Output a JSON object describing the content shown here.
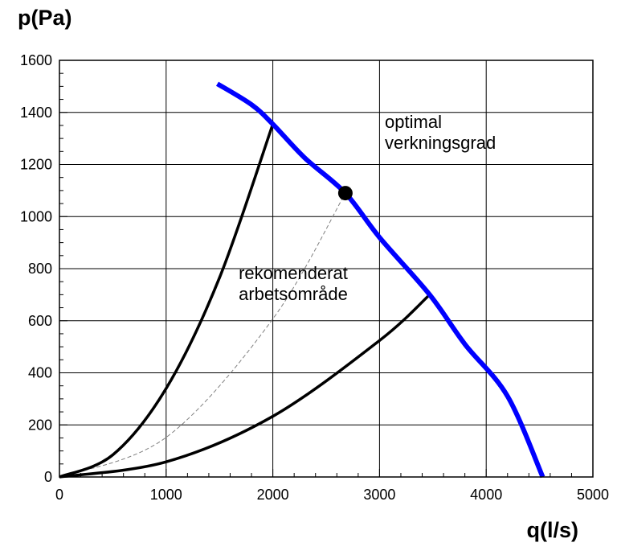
{
  "chart_data": {
    "type": "line",
    "ylabel": "p(Pa)",
    "xlabel": "q(l/s)",
    "xlim": [
      0,
      5000
    ],
    "ylim": [
      0,
      1600
    ],
    "x_ticks": [
      0,
      1000,
      2000,
      3000,
      4000,
      5000
    ],
    "y_ticks": [
      0,
      200,
      400,
      600,
      800,
      1000,
      1200,
      1400,
      1600
    ],
    "grid": true,
    "colors": {
      "fan_curve": "#0000ff",
      "system_curves": "#000000",
      "optimum_curve": "#808080"
    },
    "annotations": [
      {
        "lines": [
          "optimal",
          "verkningsgrad"
        ],
        "x": 3050,
        "y": 1340
      },
      {
        "lines": [
          "rekomenderat",
          "arbetsområde"
        ],
        "x": 1680,
        "y": 760
      }
    ],
    "series": [
      {
        "style": "fan-curve",
        "points": [
          [
            1480,
            1510
          ],
          [
            1800,
            1430
          ],
          [
            2000,
            1355
          ],
          [
            2300,
            1225
          ],
          [
            2680,
            1090
          ],
          [
            3000,
            920
          ],
          [
            3470,
            700
          ],
          [
            3800,
            510
          ],
          [
            4200,
            310
          ],
          [
            4530,
            0
          ]
        ]
      },
      {
        "style": "system-curve-upper",
        "points": [
          [
            0,
            0
          ],
          [
            500,
            85
          ],
          [
            1000,
            340
          ],
          [
            1500,
            765
          ],
          [
            2000,
            1355
          ]
        ]
      },
      {
        "style": "system-curve-lower",
        "points": [
          [
            0,
            0
          ],
          [
            1000,
            58
          ],
          [
            2000,
            233
          ],
          [
            3000,
            524
          ],
          [
            3470,
            700
          ]
        ]
      },
      {
        "style": "optimum-curve-dashed",
        "points": [
          [
            0,
            0
          ],
          [
            1000,
            152
          ],
          [
            2000,
            607
          ],
          [
            2680,
            1090
          ]
        ]
      }
    ],
    "markers": [
      {
        "label": "optimum-point",
        "x": 2680,
        "y": 1090
      }
    ]
  }
}
